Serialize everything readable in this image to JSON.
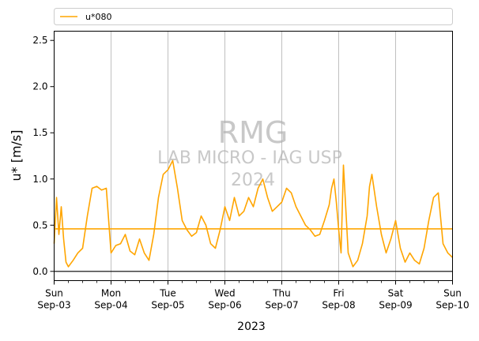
{
  "chart_data": {
    "type": "line",
    "xlabel": "2023",
    "ylabel": "u* [m/s]",
    "ylim": [
      -0.1,
      2.6
    ],
    "yticks": [
      0.0,
      0.5,
      1.0,
      1.5,
      2.0,
      2.5
    ],
    "ytick_labels": [
      "0.0",
      "0.5",
      "1.0",
      "1.5",
      "2.0",
      "2.5"
    ],
    "xlim": [
      "2023-09-03T00:00",
      "2023-09-10T00:00"
    ],
    "x_ticks": [
      {
        "date": "2023-09-03",
        "day": "Sun",
        "label": "Sep-03"
      },
      {
        "date": "2023-09-04",
        "day": "Mon",
        "label": "Sep-04"
      },
      {
        "date": "2023-09-05",
        "day": "Tue",
        "label": "Sep-05"
      },
      {
        "date": "2023-09-06",
        "day": "Wed",
        "label": "Sep-06"
      },
      {
        "date": "2023-09-07",
        "day": "Thu",
        "label": "Sep-07"
      },
      {
        "date": "2023-09-08",
        "day": "Fri",
        "label": "Sep-08"
      },
      {
        "date": "2023-09-09",
        "day": "Sat",
        "label": "Sep-09"
      },
      {
        "date": "2023-09-10",
        "day": "Sun",
        "label": "Sep-10"
      }
    ],
    "grid": "vertical",
    "legend_placement": "top",
    "hlines": [
      {
        "y": 0.46,
        "color": "#ffa500"
      },
      {
        "y": 0.0,
        "color": "#000000"
      }
    ],
    "watermark": [
      "RMG",
      "LAB MICRO - IAG USP",
      "2024"
    ],
    "series": [
      {
        "name": "u*080",
        "color": "#ffa500",
        "x": [
          "2023-09-03T00:00",
          "2023-09-03T01:00",
          "2023-09-03T02:00",
          "2023-09-03T03:00",
          "2023-09-03T04:00",
          "2023-09-03T05:00",
          "2023-09-03T06:00",
          "2023-09-03T08:00",
          "2023-09-03T10:00",
          "2023-09-03T12:00",
          "2023-09-03T14:00",
          "2023-09-03T16:00",
          "2023-09-03T18:00",
          "2023-09-03T20:00",
          "2023-09-03T22:00",
          "2023-09-04T00:00",
          "2023-09-04T02:00",
          "2023-09-04T04:00",
          "2023-09-04T06:00",
          "2023-09-04T08:00",
          "2023-09-04T10:00",
          "2023-09-04T12:00",
          "2023-09-04T14:00",
          "2023-09-04T16:00",
          "2023-09-04T18:00",
          "2023-09-04T20:00",
          "2023-09-04T22:00",
          "2023-09-05T00:00",
          "2023-09-05T02:00",
          "2023-09-05T04:00",
          "2023-09-05T06:00",
          "2023-09-05T08:00",
          "2023-09-05T10:00",
          "2023-09-05T12:00",
          "2023-09-05T14:00",
          "2023-09-05T16:00",
          "2023-09-05T18:00",
          "2023-09-05T20:00",
          "2023-09-05T22:00",
          "2023-09-06T00:00",
          "2023-09-06T02:00",
          "2023-09-06T04:00",
          "2023-09-06T06:00",
          "2023-09-06T08:00",
          "2023-09-06T10:00",
          "2023-09-06T12:00",
          "2023-09-06T14:00",
          "2023-09-06T16:00",
          "2023-09-06T18:00",
          "2023-09-06T20:00",
          "2023-09-06T22:00",
          "2023-09-07T00:00",
          "2023-09-07T02:00",
          "2023-09-07T04:00",
          "2023-09-07T06:00",
          "2023-09-07T08:00",
          "2023-09-07T10:00",
          "2023-09-07T12:00",
          "2023-09-07T14:00",
          "2023-09-07T16:00",
          "2023-09-07T18:00",
          "2023-09-07T20:00",
          "2023-09-07T21:00",
          "2023-09-07T22:00",
          "2023-09-07T23:00",
          "2023-09-08T00:00",
          "2023-09-08T01:00",
          "2023-09-08T02:00",
          "2023-09-08T04:00",
          "2023-09-08T06:00",
          "2023-09-08T08:00",
          "2023-09-08T10:00",
          "2023-09-08T12:00",
          "2023-09-08T13:00",
          "2023-09-08T14:00",
          "2023-09-08T16:00",
          "2023-09-08T18:00",
          "2023-09-08T20:00",
          "2023-09-08T22:00",
          "2023-09-09T00:00",
          "2023-09-09T02:00",
          "2023-09-09T04:00",
          "2023-09-09T06:00",
          "2023-09-09T08:00",
          "2023-09-09T10:00",
          "2023-09-09T12:00",
          "2023-09-09T14:00",
          "2023-09-09T16:00",
          "2023-09-09T18:00",
          "2023-09-09T20:00",
          "2023-09-09T22:00",
          "2023-09-10T00:00"
        ],
        "y": [
          0.3,
          0.8,
          0.4,
          0.7,
          0.35,
          0.1,
          0.05,
          0.12,
          0.2,
          0.25,
          0.6,
          0.9,
          0.92,
          0.88,
          0.9,
          0.2,
          0.28,
          0.3,
          0.4,
          0.22,
          0.18,
          0.35,
          0.2,
          0.12,
          0.4,
          0.8,
          1.05,
          1.1,
          1.2,
          0.9,
          0.55,
          0.45,
          0.38,
          0.42,
          0.6,
          0.5,
          0.3,
          0.25,
          0.45,
          0.7,
          0.55,
          0.8,
          0.6,
          0.65,
          0.8,
          0.7,
          0.9,
          1.0,
          0.8,
          0.65,
          0.7,
          0.75,
          0.9,
          0.85,
          0.7,
          0.6,
          0.5,
          0.45,
          0.38,
          0.4,
          0.55,
          0.72,
          0.9,
          1.0,
          0.75,
          0.45,
          0.2,
          1.15,
          0.2,
          0.05,
          0.12,
          0.3,
          0.6,
          0.92,
          1.05,
          0.7,
          0.4,
          0.2,
          0.35,
          0.55,
          0.25,
          0.1,
          0.2,
          0.12,
          0.08,
          0.25,
          0.55,
          0.8,
          0.85,
          0.3,
          0.2,
          0.15
        ]
      }
    ]
  }
}
